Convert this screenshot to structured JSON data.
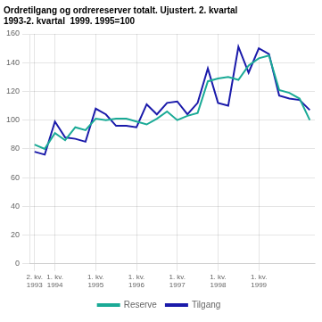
{
  "chart_data": {
    "type": "line",
    "title": "Ordretilgang og ordrereserver totalt. Ujustert. 2. kvartal\n1993-2. kvartal  1999. 1995=100",
    "categories": [
      "2. kv.\n1993",
      null,
      "1. kv.\n1994",
      null,
      null,
      null,
      "1. kv.\n1995",
      null,
      null,
      null,
      "1. kv.\n1996",
      null,
      null,
      null,
      "1. kv.\n1997",
      null,
      null,
      null,
      "1. kv.\n1998",
      null,
      null,
      null,
      "1. kv.\n1999",
      null,
      null,
      null,
      null,
      null
    ],
    "series": [
      {
        "name": "Reserve",
        "color": "#1aaa96",
        "values": [
          83,
          80,
          91,
          86,
          95,
          93,
          101,
          100,
          101,
          101,
          99,
          97,
          101,
          106,
          100,
          103,
          105,
          127,
          129,
          130,
          128,
          138,
          143,
          145,
          121,
          119,
          115,
          100
        ]
      },
      {
        "name": "Tilgang",
        "color": "#1a1aaa",
        "values": [
          78,
          76,
          99,
          88,
          87,
          85,
          108,
          104,
          96,
          96,
          95,
          111,
          104,
          112,
          113,
          104,
          112,
          136,
          112,
          110,
          151,
          133,
          150,
          146,
          117,
          115,
          114,
          107
        ]
      }
    ],
    "ylim": [
      0,
      160
    ],
    "yticks": [
      0,
      20,
      40,
      60,
      80,
      100,
      120,
      140,
      160
    ],
    "grid": true,
    "legend": "bottom"
  }
}
